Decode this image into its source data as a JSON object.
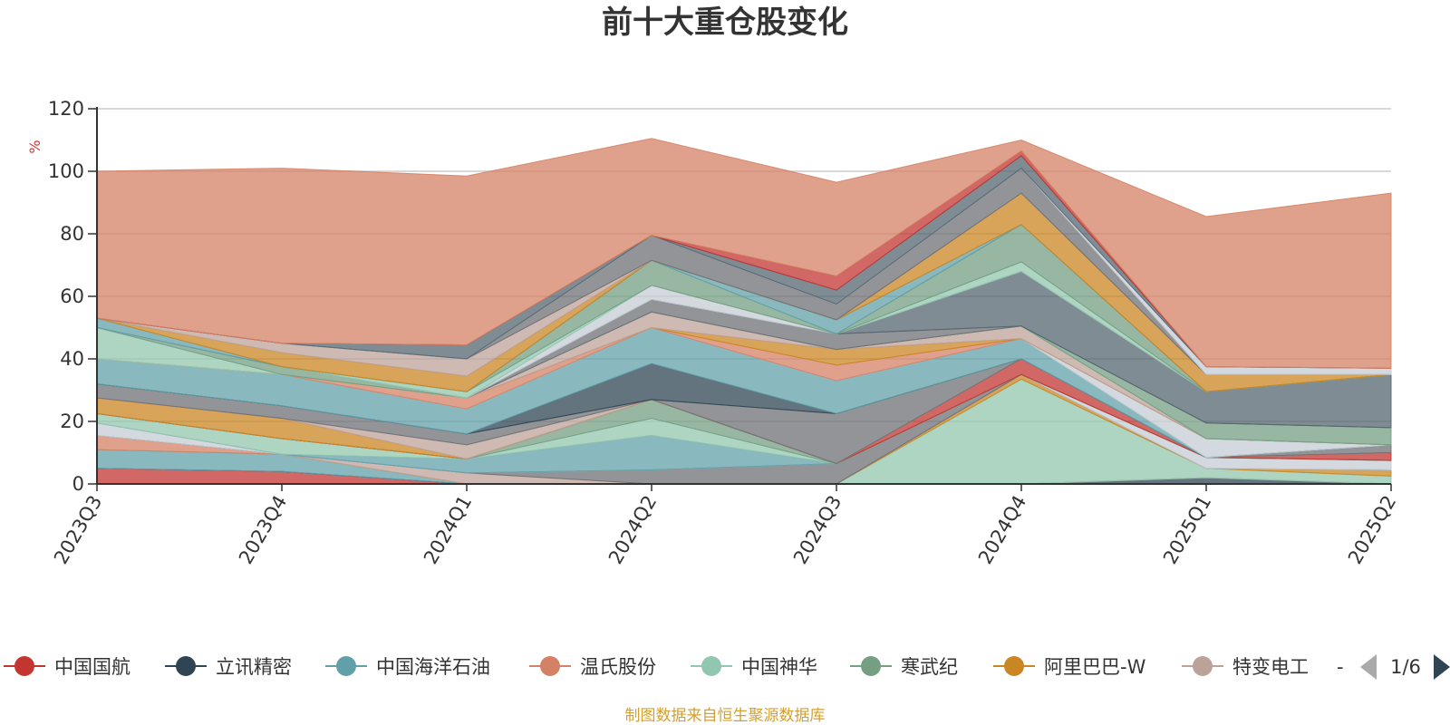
{
  "chart_data": {
    "type": "area",
    "stacked": true,
    "title": "前十大重仓股变化",
    "ylabel": "%",
    "ylim": [
      0,
      120
    ],
    "y_ticks": [
      0,
      20,
      40,
      60,
      80,
      100,
      120
    ],
    "grid": true,
    "legend_position": "bottom",
    "x": [
      "2023Q3",
      "2023Q4",
      "2024Q1",
      "2024Q2",
      "2024Q3",
      "2024Q4",
      "2025Q1",
      "2025Q2"
    ],
    "series": [
      {
        "name": "中国国航",
        "color": "#c23531",
        "values": [
          5,
          4,
          0,
          0,
          0,
          0,
          0,
          0
        ]
      },
      {
        "name": "立讯精密",
        "color": "#2f4554",
        "values": [
          0,
          0,
          0,
          0,
          0,
          0,
          2,
          0
        ]
      },
      {
        "name": "中国海洋石油",
        "color": "#61a0a8",
        "values": [
          6,
          5.5,
          0,
          0,
          0,
          0,
          0,
          0
        ]
      },
      {
        "name": "温氏股份",
        "color": "#d48265",
        "values": [
          4.5,
          0,
          0,
          0,
          0,
          0,
          0,
          0
        ]
      },
      {
        "name": "中国神华",
        "color": "#91c7ae",
        "values": [
          0,
          0,
          0,
          0,
          0,
          33.5,
          3,
          2.5
        ]
      },
      {
        "name": "寒武纪",
        "color": "#749f83",
        "values": [
          0,
          0,
          0,
          0,
          0,
          0,
          0,
          0
        ]
      },
      {
        "name": "阿里巴巴-W",
        "color": "#ca8622",
        "values": [
          0,
          0,
          0,
          0,
          0,
          1.5,
          0,
          2
        ]
      },
      {
        "name": "特变电工",
        "color": "#bda29a",
        "values": [
          0,
          0,
          3.5,
          0,
          0,
          0,
          0,
          0
        ]
      },
      {
        "name": "",
        "color": "#6e7074",
        "values": [
          0,
          0,
          0,
          4.5,
          6.5,
          0,
          0,
          0
        ]
      },
      {
        "name": "",
        "color": "#546570",
        "values": [
          0,
          0,
          0,
          0,
          0,
          0,
          0,
          0
        ]
      },
      {
        "name": "",
        "color": "#c4ccd3",
        "values": [
          4,
          0,
          0,
          0,
          0,
          0,
          3.5,
          3
        ]
      },
      {
        "name": "",
        "color": "#61a0a8",
        "values": [
          0,
          0,
          4.5,
          11,
          0,
          0,
          0,
          0
        ]
      },
      {
        "name": "",
        "color": "#91c7ae",
        "values": [
          3,
          5,
          0,
          5.5,
          0,
          0,
          0,
          0
        ]
      },
      {
        "name": "",
        "color": "#749f83",
        "values": [
          0,
          0,
          0,
          6,
          0,
          0,
          0,
          0
        ]
      },
      {
        "name": "",
        "color": "#c23531",
        "values": [
          0,
          0,
          0,
          0,
          0,
          5,
          0,
          2.5
        ]
      },
      {
        "name": "",
        "color": "#ca8622",
        "values": [
          5,
          6.5,
          0,
          0,
          0,
          0,
          0,
          0
        ]
      },
      {
        "name": "",
        "color": "#bda29a",
        "values": [
          0,
          0,
          4.5,
          0,
          0,
          0,
          0,
          0
        ]
      },
      {
        "name": "",
        "color": "#6e7074",
        "values": [
          4.5,
          4,
          3.5,
          0,
          16,
          0,
          0,
          2.5
        ]
      },
      {
        "name": "",
        "color": "#2f4554",
        "values": [
          0,
          0,
          0,
          11.5,
          0,
          0,
          0,
          0
        ]
      },
      {
        "name": "",
        "color": "#61a0a8",
        "values": [
          8,
          10,
          8,
          11.5,
          10.5,
          6.5,
          0,
          0
        ]
      },
      {
        "name": "",
        "color": "#c4ccd3",
        "values": [
          0,
          0,
          0,
          0,
          0,
          0,
          6,
          0
        ]
      },
      {
        "name": "",
        "color": "#d48265",
        "values": [
          0,
          0,
          3.5,
          0,
          5,
          0,
          0,
          0
        ]
      },
      {
        "name": "",
        "color": "#ca8622",
        "values": [
          0,
          0,
          0,
          0,
          5,
          0,
          0,
          0
        ]
      },
      {
        "name": "",
        "color": "#bda29a",
        "values": [
          0,
          0,
          0,
          5,
          0,
          4,
          0,
          0
        ]
      },
      {
        "name": "",
        "color": "#91c7ae",
        "values": [
          10,
          0,
          0,
          0,
          0,
          0,
          0,
          0
        ]
      },
      {
        "name": "",
        "color": "#749f83",
        "values": [
          0,
          2.5,
          0,
          0,
          0,
          0,
          5,
          5.5
        ]
      },
      {
        "name": "",
        "color": "#6e7074",
        "values": [
          0,
          0,
          0,
          4,
          5,
          0,
          0,
          0
        ]
      },
      {
        "name": "",
        "color": "#546570",
        "values": [
          0,
          0,
          0,
          0,
          0,
          17.5,
          10,
          17
        ]
      },
      {
        "name": "",
        "color": "#c4ccd3",
        "values": [
          0,
          0,
          0,
          4.5,
          0,
          0,
          0,
          0
        ]
      },
      {
        "name": "",
        "color": "#91c7ae",
        "values": [
          0,
          0,
          2,
          0,
          0,
          3,
          0,
          0
        ]
      },
      {
        "name": "",
        "color": "#749f83",
        "values": [
          0,
          0,
          0,
          8,
          0,
          12,
          0,
          0
        ]
      },
      {
        "name": "",
        "color": "#61a0a8",
        "values": [
          3,
          0,
          0,
          0,
          4.5,
          0,
          0,
          0
        ]
      },
      {
        "name": "",
        "color": "#ca8622",
        "values": [
          0,
          4.5,
          5,
          0,
          0,
          10,
          5.5,
          0
        ]
      },
      {
        "name": "",
        "color": "#bda29a",
        "values": [
          0,
          3,
          5.5,
          0,
          0,
          0,
          0,
          0
        ]
      },
      {
        "name": "",
        "color": "#6e7074",
        "values": [
          0,
          0,
          0,
          8,
          5,
          8,
          0,
          0
        ]
      },
      {
        "name": "",
        "color": "#c4ccd3",
        "values": [
          0,
          0,
          0,
          0,
          0,
          0,
          2.5,
          2
        ]
      },
      {
        "name": "",
        "color": "#546570",
        "values": [
          0,
          0,
          4.5,
          0,
          4.5,
          4,
          0,
          0
        ]
      },
      {
        "name": "",
        "color": "#c23531",
        "values": [
          0,
          0,
          0,
          0,
          4.5,
          1.5,
          0,
          0
        ]
      },
      {
        "name": "",
        "color": "#d48265",
        "values": [
          47,
          56,
          54,
          31,
          30,
          3.5,
          48,
          56
        ]
      }
    ],
    "legend": {
      "visible_entries": [
        "中国国航",
        "立讯精密",
        "中国海洋石油",
        "温氏股份",
        "中国神华",
        "寒武纪",
        "阿里巴巴-W",
        "特变电工"
      ],
      "overflow_mark": "-",
      "page_indicator": "1/6"
    },
    "source_note": "制图数据来自恒生聚源数据库"
  }
}
